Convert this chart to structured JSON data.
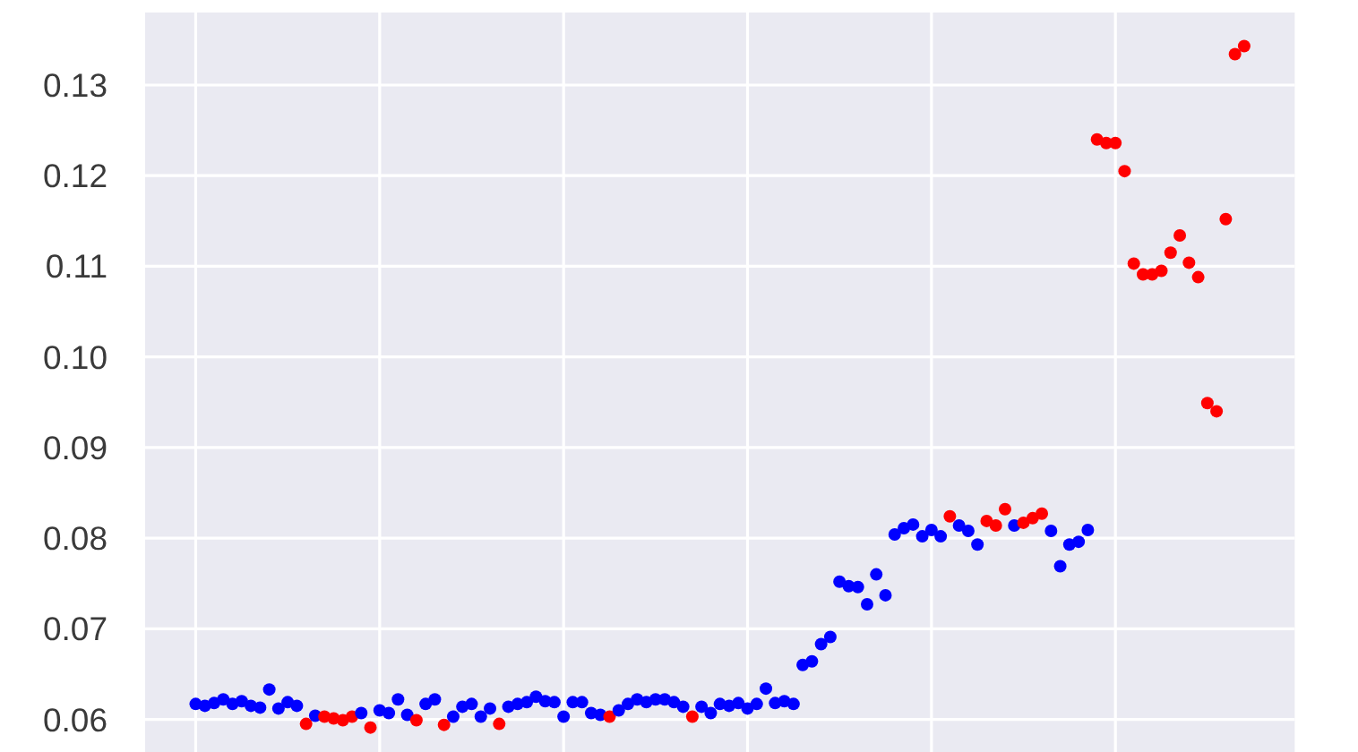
{
  "chart_data": {
    "type": "scatter",
    "categories": [
      null,
      null,
      null,
      null,
      null,
      null,
      null,
      null,
      null,
      null,
      null,
      null,
      null,
      null,
      null,
      null,
      null,
      null,
      null,
      null,
      null,
      null,
      null,
      null,
      null,
      null,
      null,
      null,
      null,
      null,
      null,
      null,
      null,
      null,
      null,
      null,
      null,
      null,
      null,
      null,
      null,
      null,
      null,
      null,
      null,
      null,
      null,
      null,
      null,
      null,
      null,
      null,
      null,
      null,
      null,
      null,
      null,
      null,
      null,
      null,
      null,
      null,
      null,
      null,
      null,
      null,
      null,
      null,
      null,
      null,
      null,
      null,
      null,
      null,
      null,
      null,
      null,
      null,
      null,
      null,
      null,
      null,
      null,
      null,
      null,
      null,
      null,
      null,
      null,
      null,
      null,
      null,
      null,
      null,
      null,
      null,
      null,
      null,
      null,
      null,
      null,
      null,
      null,
      null,
      null,
      null,
      null,
      null,
      null,
      null,
      null,
      null,
      null,
      null,
      null,
      null,
      null,
      null,
      null,
      null,
      null,
      null,
      null,
      null,
      null
    ],
    "values": [
      null,
      null,
      null,
      null,
      null,
      0.0617,
      0.0615,
      0.0618,
      0.0622,
      0.0617,
      0.062,
      0.0615,
      0.0613,
      0.0633,
      0.0612,
      0.0619,
      0.0615,
      0.0595,
      0.0604,
      0.0603,
      0.0601,
      0.0599,
      0.0603,
      0.0607,
      0.0591,
      0.061,
      0.0607,
      0.0622,
      0.0605,
      0.0599,
      0.0617,
      0.0622,
      0.0594,
      0.0603,
      0.0614,
      0.0617,
      0.0603,
      0.0612,
      0.0595,
      0.0614,
      0.0617,
      0.0619,
      0.0625,
      0.062,
      0.0619,
      0.0603,
      0.0619,
      0.0619,
      0.0607,
      0.0605,
      0.0603,
      0.061,
      0.0617,
      0.0622,
      0.0619,
      0.0622,
      0.0622,
      0.0619,
      0.0614,
      0.0603,
      0.0614,
      0.0607,
      0.0617,
      0.0615,
      0.0618,
      0.0612,
      0.0617,
      0.0634,
      0.0618,
      0.062,
      0.0617,
      0.066,
      0.0664,
      0.0683,
      0.0691,
      0.0752,
      0.0747,
      0.0746,
      0.0727,
      0.076,
      0.0737,
      0.0804,
      0.0811,
      0.0815,
      0.0802,
      0.0809,
      0.0802,
      0.0824,
      0.0814,
      0.0808,
      0.0793,
      0.0819,
      0.0814,
      0.0832,
      0.0814,
      0.0817,
      0.0822,
      0.0827,
      0.0808,
      0.0769,
      0.0793,
      0.0796,
      0.0809,
      0.124,
      0.1236,
      0.1236,
      0.1205,
      0.1103,
      0.1091,
      0.1091,
      0.1095,
      0.1115,
      0.1134,
      0.1104,
      0.1088,
      0.0949,
      0.094,
      0.1152,
      0.1334,
      0.1343,
      null,
      null,
      null,
      null,
      null
    ],
    "colors": [
      null,
      null,
      null,
      null,
      null,
      "#0000ff",
      "#0000ff",
      "#0000ff",
      "#0000ff",
      "#0000ff",
      "#0000ff",
      "#0000ff",
      "#0000ff",
      "#0000ff",
      "#0000ff",
      "#0000ff",
      "#0000ff",
      "#ff0000",
      "#0000ff",
      "#ff0000",
      "#ff0000",
      "#ff0000",
      "#ff0000",
      "#0000ff",
      "#ff0000",
      "#0000ff",
      "#0000ff",
      "#0000ff",
      "#0000ff",
      "#ff0000",
      "#0000ff",
      "#0000ff",
      "#ff0000",
      "#0000ff",
      "#0000ff",
      "#0000ff",
      "#0000ff",
      "#0000ff",
      "#ff0000",
      "#0000ff",
      "#0000ff",
      "#0000ff",
      "#0000ff",
      "#0000ff",
      "#0000ff",
      "#0000ff",
      "#0000ff",
      "#0000ff",
      "#0000ff",
      "#0000ff",
      "#ff0000",
      "#0000ff",
      "#0000ff",
      "#0000ff",
      "#0000ff",
      "#0000ff",
      "#0000ff",
      "#0000ff",
      "#0000ff",
      "#ff0000",
      "#0000ff",
      "#0000ff",
      "#0000ff",
      "#0000ff",
      "#0000ff",
      "#0000ff",
      "#0000ff",
      "#0000ff",
      "#0000ff",
      "#0000ff",
      "#0000ff",
      "#0000ff",
      "#0000ff",
      "#0000ff",
      "#0000ff",
      "#0000ff",
      "#0000ff",
      "#0000ff",
      "#0000ff",
      "#0000ff",
      "#0000ff",
      "#0000ff",
      "#0000ff",
      "#0000ff",
      "#0000ff",
      "#0000ff",
      "#0000ff",
      "#ff0000",
      "#0000ff",
      "#0000ff",
      "#0000ff",
      "#ff0000",
      "#ff0000",
      "#ff0000",
      "#0000ff",
      "#ff0000",
      "#ff0000",
      "#ff0000",
      "#0000ff",
      "#0000ff",
      "#0000ff",
      "#0000ff",
      "#0000ff",
      "#ff0000",
      "#ff0000",
      "#ff0000",
      "#ff0000",
      "#ff0000",
      "#ff0000",
      "#ff0000",
      "#ff0000",
      "#ff0000",
      "#ff0000",
      "#ff0000",
      "#ff0000",
      "#ff0000",
      "#ff0000",
      "#ff0000",
      "#ff0000",
      "#ff0000",
      null,
      null,
      null,
      null,
      null
    ],
    "ylim": [
      0.0564,
      0.138
    ],
    "yticks": [
      0.06,
      0.07,
      0.08,
      0.09,
      {
        "value": 0.1,
        "label": "0.10"
      },
      0.11,
      0.12,
      0.13
    ],
    "grid": true,
    "marker": "circle",
    "tick_labels": "y"
  }
}
